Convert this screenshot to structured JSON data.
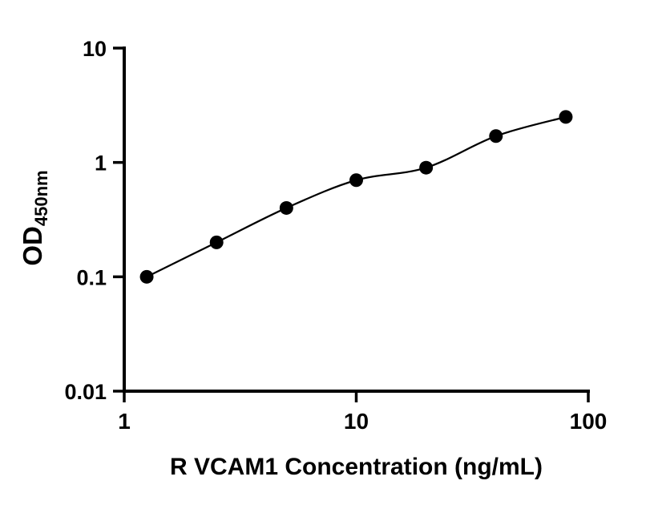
{
  "figure": {
    "background": "#ffffff"
  },
  "chart_data": {
    "type": "scatter",
    "title": "",
    "xlabel": "R VCAM1 Concentration (ng/mL)",
    "ylabel_main": "OD",
    "ylabel_sub": "450nm",
    "xscale": "log",
    "yscale": "log",
    "xlim": [
      1,
      100
    ],
    "ylim": [
      0.01,
      10
    ],
    "x": [
      1.25,
      2.5,
      5,
      10,
      20,
      40,
      80
    ],
    "y": [
      0.1,
      0.2,
      0.4,
      0.7,
      0.9,
      1.7,
      2.5
    ],
    "xticks": {
      "values": [
        1,
        10,
        100
      ],
      "labels": [
        "1",
        "10",
        "100"
      ]
    },
    "yticks": {
      "values": [
        0.01,
        0.1,
        1,
        10
      ],
      "labels": [
        "0.01",
        "0.1",
        "1",
        "10"
      ]
    },
    "grid": false,
    "legend": "none",
    "line_style": "smooth-curve-through-points",
    "marker": "filled-circle",
    "marker_color": "#000000",
    "line_color": "#000000",
    "axis_color": "#000000"
  }
}
